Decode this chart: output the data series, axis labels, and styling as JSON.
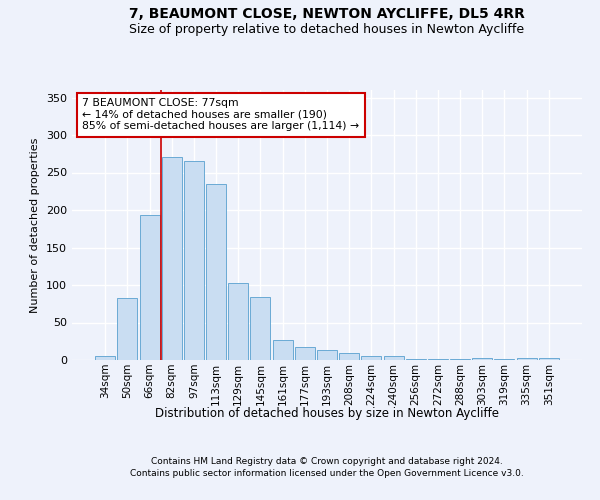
{
  "title1": "7, BEAUMONT CLOSE, NEWTON AYCLIFFE, DL5 4RR",
  "title2": "Size of property relative to detached houses in Newton Aycliffe",
  "xlabel": "Distribution of detached houses by size in Newton Aycliffe",
  "ylabel": "Number of detached properties",
  "categories": [
    "34sqm",
    "50sqm",
    "66sqm",
    "82sqm",
    "97sqm",
    "113sqm",
    "129sqm",
    "145sqm",
    "161sqm",
    "177sqm",
    "193sqm",
    "208sqm",
    "224sqm",
    "240sqm",
    "256sqm",
    "272sqm",
    "288sqm",
    "303sqm",
    "319sqm",
    "335sqm",
    "351sqm"
  ],
  "values": [
    6,
    83,
    193,
    271,
    266,
    235,
    103,
    84,
    27,
    17,
    14,
    9,
    6,
    5,
    1,
    1,
    1,
    3,
    1,
    3,
    3
  ],
  "bar_color": "#c9ddf2",
  "bar_edge_color": "#6aaad4",
  "property_line_color": "#cc0000",
  "annotation_text": "7 BEAUMONT CLOSE: 77sqm\n← 14% of detached houses are smaller (190)\n85% of semi-detached houses are larger (1,114) →",
  "annotation_box_color": "#ffffff",
  "annotation_box_edge": "#cc0000",
  "footnote1": "Contains HM Land Registry data © Crown copyright and database right 2024.",
  "footnote2": "Contains public sector information licensed under the Open Government Licence v3.0.",
  "ylim": [
    0,
    360
  ],
  "background_color": "#eef2fb",
  "grid_color": "#ffffff",
  "title1_fontsize": 10,
  "title2_fontsize": 9
}
